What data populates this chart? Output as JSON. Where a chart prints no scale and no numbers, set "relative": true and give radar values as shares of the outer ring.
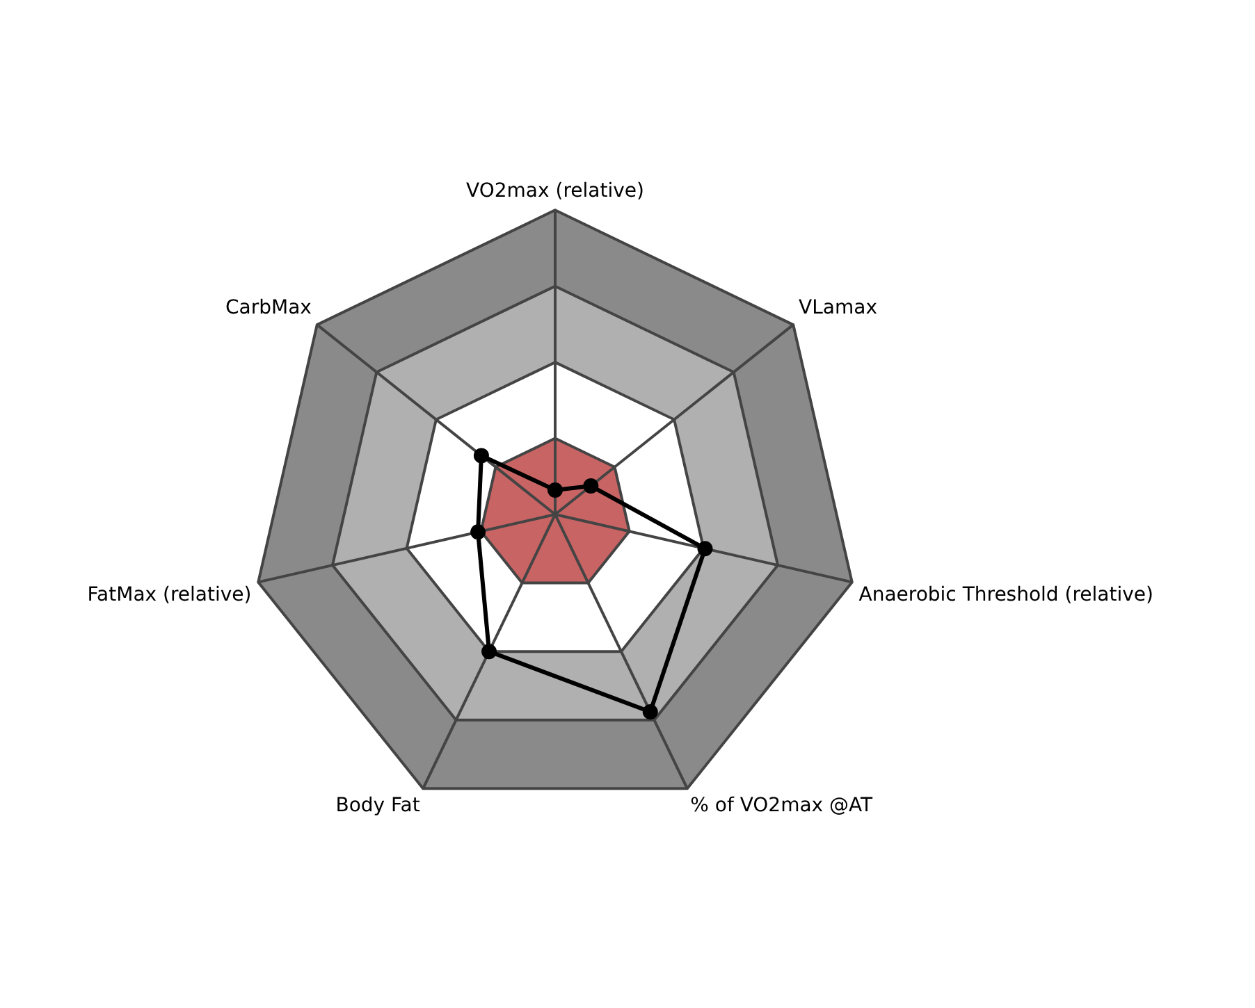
{
  "chart_data": {
    "type": "radar",
    "relative": true,
    "categories": [
      "VO2max (relative)",
      "VLamax",
      "Anaerobic Threshold (relative)",
      "% of VO2max @AT",
      "Body Fat",
      "FatMax (relative)",
      "CarbMax"
    ],
    "series": [
      {
        "color": "#000000",
        "values": [
          0.08,
          0.15,
          0.505,
          0.72,
          0.5,
          0.26,
          0.31
        ]
      }
    ],
    "grid": true,
    "marker": "circle"
  }
}
